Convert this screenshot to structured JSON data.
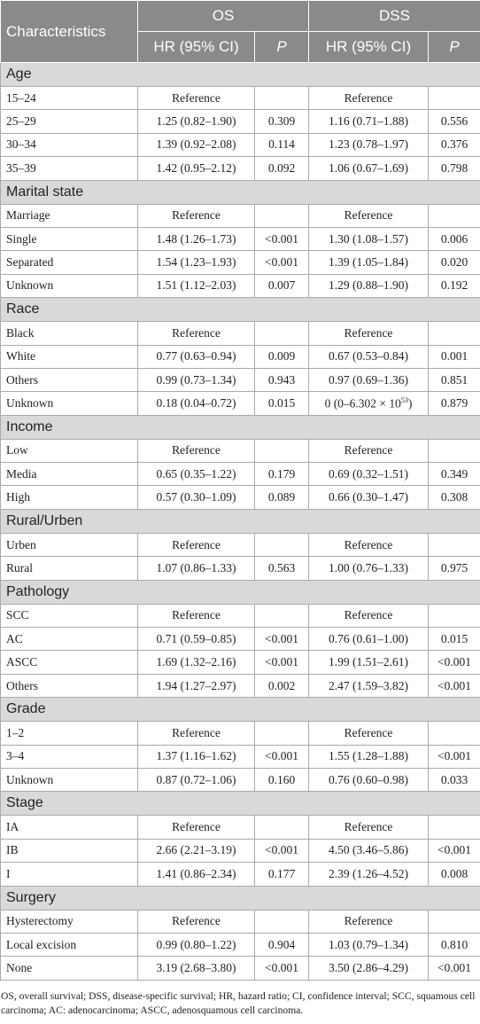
{
  "header": {
    "title": "Characteristics",
    "groups": [
      "OS",
      "DSS"
    ],
    "subheaders": [
      "HR (95% CI)",
      "P",
      "HR (95% CI)",
      "P"
    ]
  },
  "sections": [
    {
      "name": "Age",
      "rows": [
        {
          "label": "15–24",
          "os_hr": "Reference",
          "dss_hr": "Reference"
        },
        {
          "label": "25–29",
          "os_hr": "1.25 (0.82–1.90)",
          "os_p": "0.309",
          "dss_hr": "1.16 (0.71–1.88)",
          "dss_p": "0.556"
        },
        {
          "label": "30–34",
          "os_hr": "1.39 (0.92–2.08)",
          "os_p": "0.114",
          "dss_hr": "1.23 (0.78–1.97)",
          "dss_p": "0.376"
        },
        {
          "label": "35–39",
          "os_hr": "1.42 (0.95–2.12)",
          "os_p": "0.092",
          "dss_hr": "1.06 (0.67–1.69)",
          "dss_p": "0.798"
        }
      ]
    },
    {
      "name": "Marital state",
      "rows": [
        {
          "label": "Marriage",
          "os_hr": "Reference",
          "dss_hr": "Reference"
        },
        {
          "label": "Single",
          "os_hr": "1.48 (1.26–1.73)",
          "os_p": "<0.001",
          "dss_hr": "1.30 (1.08–1.57)",
          "dss_p": "0.006"
        },
        {
          "label": "Separated",
          "os_hr": "1.54 (1.23–1.93)",
          "os_p": "<0.001",
          "dss_hr": "1.39 (1.05–1.84)",
          "dss_p": "0.020"
        },
        {
          "label": "Unknown",
          "os_hr": "1.51 (1.12–2.03)",
          "os_p": "0.007",
          "dss_hr": "1.29 (0.88–1.90)",
          "dss_p": "0.192"
        }
      ]
    },
    {
      "name": "Race",
      "rows": [
        {
          "label": "Black",
          "os_hr": "Reference",
          "dss_hr": "Reference"
        },
        {
          "label": "White",
          "os_hr": "0.77 (0.63–0.94)",
          "os_p": "0.009",
          "dss_hr": "0.67 (0.53–0.84)",
          "dss_p": "0.001"
        },
        {
          "label": "Others",
          "os_hr": "0.99 (0.73–1.34)",
          "os_p": "0.943",
          "dss_hr": "0.97 (0.69–1.36)",
          "dss_p": "0.851"
        },
        {
          "label": "Unknown",
          "os_hr": "0.18 (0.04–0.72)",
          "os_p": "0.015",
          "dss_hr": {
            "base": "0 (0–6.302 × 10",
            "sup": "53",
            "end": ")"
          },
          "dss_p": "0.879"
        }
      ]
    },
    {
      "name": "Income",
      "rows": [
        {
          "label": "Low",
          "os_hr": "Reference",
          "dss_hr": "Reference"
        },
        {
          "label": "Media",
          "os_hr": "0.65 (0.35–1.22)",
          "os_p": "0.179",
          "dss_hr": "0.69 (0.32–1.51)",
          "dss_p": "0.349"
        },
        {
          "label": "High",
          "os_hr": "0.57 (0.30–1.09)",
          "os_p": "0.089",
          "dss_hr": "0.66 (0.30–1.47)",
          "dss_p": "0.308"
        }
      ]
    },
    {
      "name": "Rural/Urben",
      "rows": [
        {
          "label": "Urben",
          "os_hr": "Reference",
          "dss_hr": "Reference"
        },
        {
          "label": "Rural",
          "os_hr": "1.07 (0.86–1.33)",
          "os_p": "0.563",
          "dss_hr": "1.00 (0.76–1.33)",
          "dss_p": "0.975"
        }
      ]
    },
    {
      "name": "Pathology",
      "rows": [
        {
          "label": "SCC",
          "os_hr": "Reference",
          "dss_hr": "Reference"
        },
        {
          "label": "AC",
          "os_hr": "0.71 (0.59–0.85)",
          "os_p": "<0.001",
          "dss_hr": "0.76 (0.61–1.00)",
          "dss_p": "0.015"
        },
        {
          "label": "ASCC",
          "os_hr": "1.69 (1.32–2.16)",
          "os_p": "<0.001",
          "dss_hr": "1.99 (1.51–2.61)",
          "dss_p": "<0.001"
        },
        {
          "label": "Others",
          "os_hr": "1.94 (1.27–2.97)",
          "os_p": "0.002",
          "dss_hr": "2.47 (1.59–3.82)",
          "dss_p": "<0.001"
        }
      ]
    },
    {
      "name": "Grade",
      "rows": [
        {
          "label": "1–2",
          "os_hr": "Reference",
          "dss_hr": "Reference"
        },
        {
          "label": "3–4",
          "os_hr": "1.37 (1.16–1.62)",
          "os_p": "<0.001",
          "dss_hr": "1.55 (1.28–1.88)",
          "dss_p": "<0.001"
        },
        {
          "label": "Unknown",
          "os_hr": "0.87 (0.72–1.06)",
          "os_p": "0.160",
          "dss_hr": "0.76 (0.60–0.98)",
          "dss_p": "0.033"
        }
      ]
    },
    {
      "name": "Stage",
      "rows": [
        {
          "label": "IA",
          "os_hr": "Reference",
          "dss_hr": "Reference"
        },
        {
          "label": "IB",
          "os_hr": "2.66 (2.21–3.19)",
          "os_p": "<0.001",
          "dss_hr": "4.50 (3.46–5.86)",
          "dss_p": "<0.001"
        },
        {
          "label": "I",
          "os_hr": "1.41 (0.86–2.34)",
          "os_p": "0.177",
          "dss_hr": "2.39 (1.26–4.52)",
          "dss_p": "0.008"
        }
      ]
    },
    {
      "name": "Surgery",
      "rows": [
        {
          "label": "Hysterectomy",
          "os_hr": "Reference",
          "dss_hr": "Reference"
        },
        {
          "label": "Local excision",
          "os_hr": "0.99 (0.80–1.22)",
          "os_p": "0.904",
          "dss_hr": "1.03 (0.79–1.34)",
          "dss_p": "0.810"
        },
        {
          "label": "None",
          "os_hr": "3.19 (2.68–3.80)",
          "os_p": "<0.001",
          "dss_hr": "3.50 (2.86–4.29)",
          "dss_p": "<0.001"
        }
      ]
    }
  ],
  "footnote": "OS, overall survival; DSS, disease-specific survival; HR, hazard ratio; CI, confidence interval; SCC, squamous cell carcinoma; AC: adenocarcinoma; ASCC, adenosquamous cell carcinoma."
}
